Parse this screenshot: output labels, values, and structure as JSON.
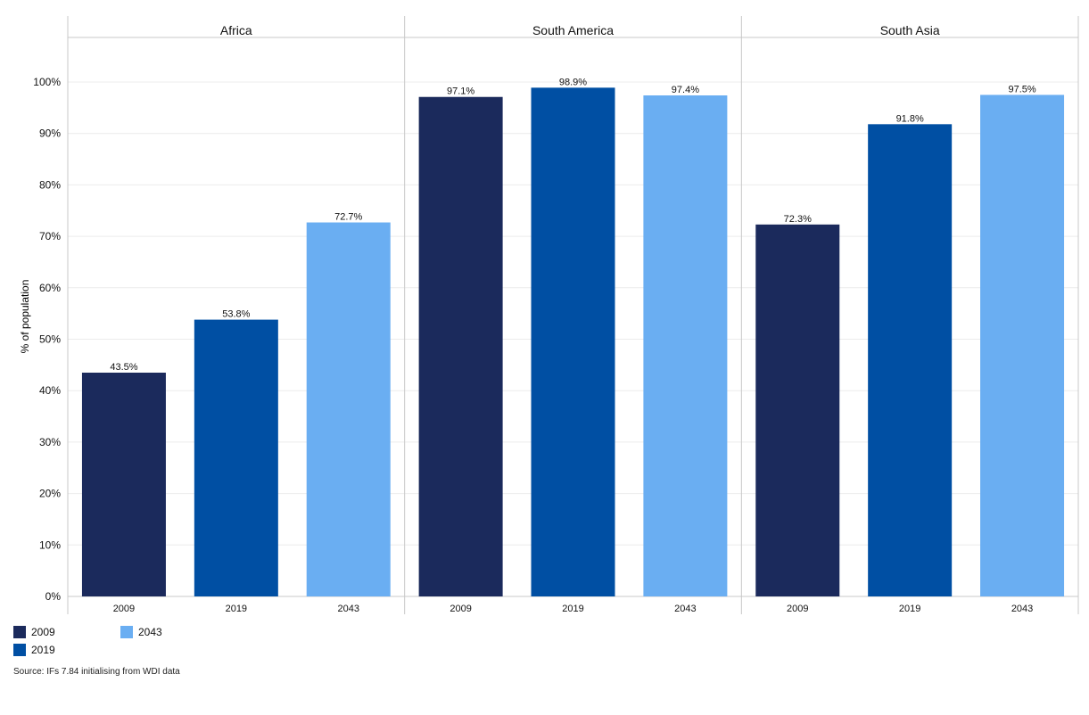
{
  "colors": {
    "2009": "#1b2a5c",
    "2019": "#004fa3",
    "2043": "#6aaef2",
    "grid": "#ececec",
    "frame": "#c8c8c8"
  },
  "chart_data": {
    "type": "bar",
    "ylabel": "% of population",
    "ylim": [
      0,
      100
    ],
    "yticks": [
      "0%",
      "10%",
      "20%",
      "30%",
      "40%",
      "50%",
      "60%",
      "70%",
      "80%",
      "90%",
      "100%"
    ],
    "categories": [
      "2009",
      "2019",
      "2043"
    ],
    "panels": [
      {
        "name": "Africa",
        "values": [
          43.5,
          53.8,
          72.7
        ],
        "labels": [
          "43.5%",
          "53.8%",
          "72.7%"
        ]
      },
      {
        "name": "South America",
        "values": [
          97.1,
          98.9,
          97.4
        ],
        "labels": [
          "97.1%",
          "98.9%",
          "97.4%"
        ]
      },
      {
        "name": "South Asia",
        "values": [
          72.3,
          91.8,
          97.5
        ],
        "labels": [
          "72.3%",
          "91.8%",
          "97.5%"
        ]
      }
    ],
    "legend": [
      {
        "label": "2009",
        "color": "#1b2a5c"
      },
      {
        "label": "2043",
        "color": "#6aaef2"
      },
      {
        "label": "2019",
        "color": "#004fa3"
      }
    ]
  },
  "source": "Source: IFs 7.84 initialising from WDI data"
}
